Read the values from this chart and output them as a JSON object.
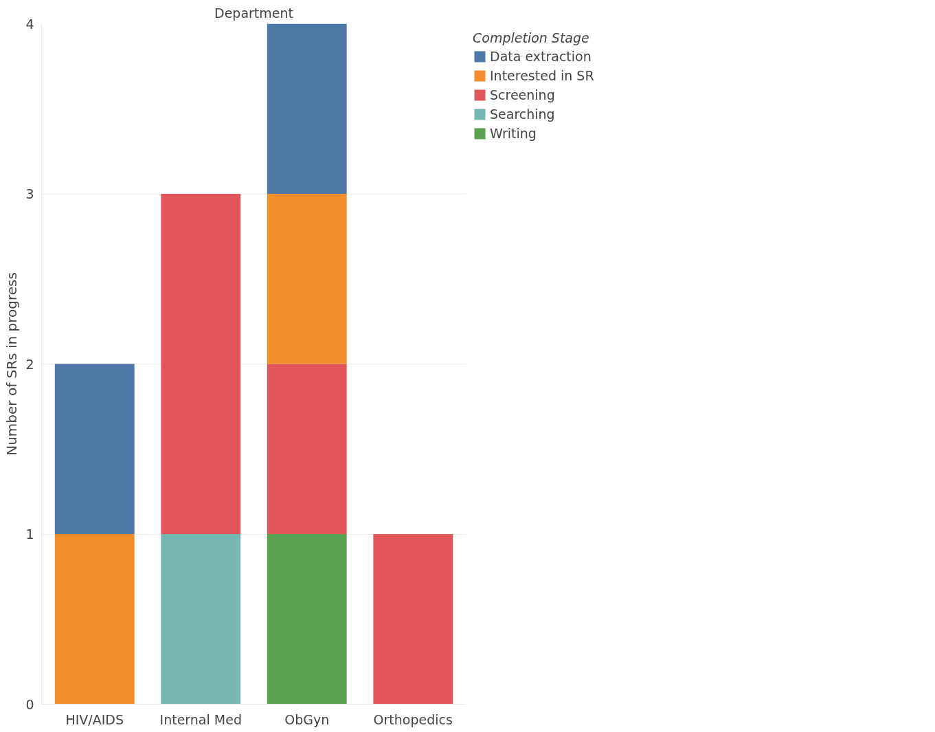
{
  "chart_data": {
    "type": "bar",
    "stacked": true,
    "xlabel": "Department",
    "ylabel": "Number of SRs in progress",
    "legend_title": "Completion Stage",
    "categories": [
      "HIV/AIDS",
      "Internal Med",
      "ObGyn",
      "Orthopedics"
    ],
    "series": [
      {
        "name": "Writing",
        "color": "#59a14f",
        "values": [
          0,
          0,
          1,
          0
        ]
      },
      {
        "name": "Searching",
        "color": "#76b7b2",
        "values": [
          0,
          1,
          0,
          0
        ]
      },
      {
        "name": "Screening",
        "color": "#e15759",
        "values": [
          0,
          2,
          1,
          1
        ]
      },
      {
        "name": "Interested in SR",
        "color": "#f28e2b",
        "values": [
          1,
          0,
          1,
          0
        ]
      },
      {
        "name": "Data extraction",
        "color": "#4e79a7",
        "values": [
          1,
          0,
          1,
          0
        ]
      }
    ],
    "ylim": [
      0,
      4
    ],
    "yticks": [
      0,
      1,
      2,
      3,
      4
    ],
    "grid": "y",
    "legend": "top right"
  }
}
